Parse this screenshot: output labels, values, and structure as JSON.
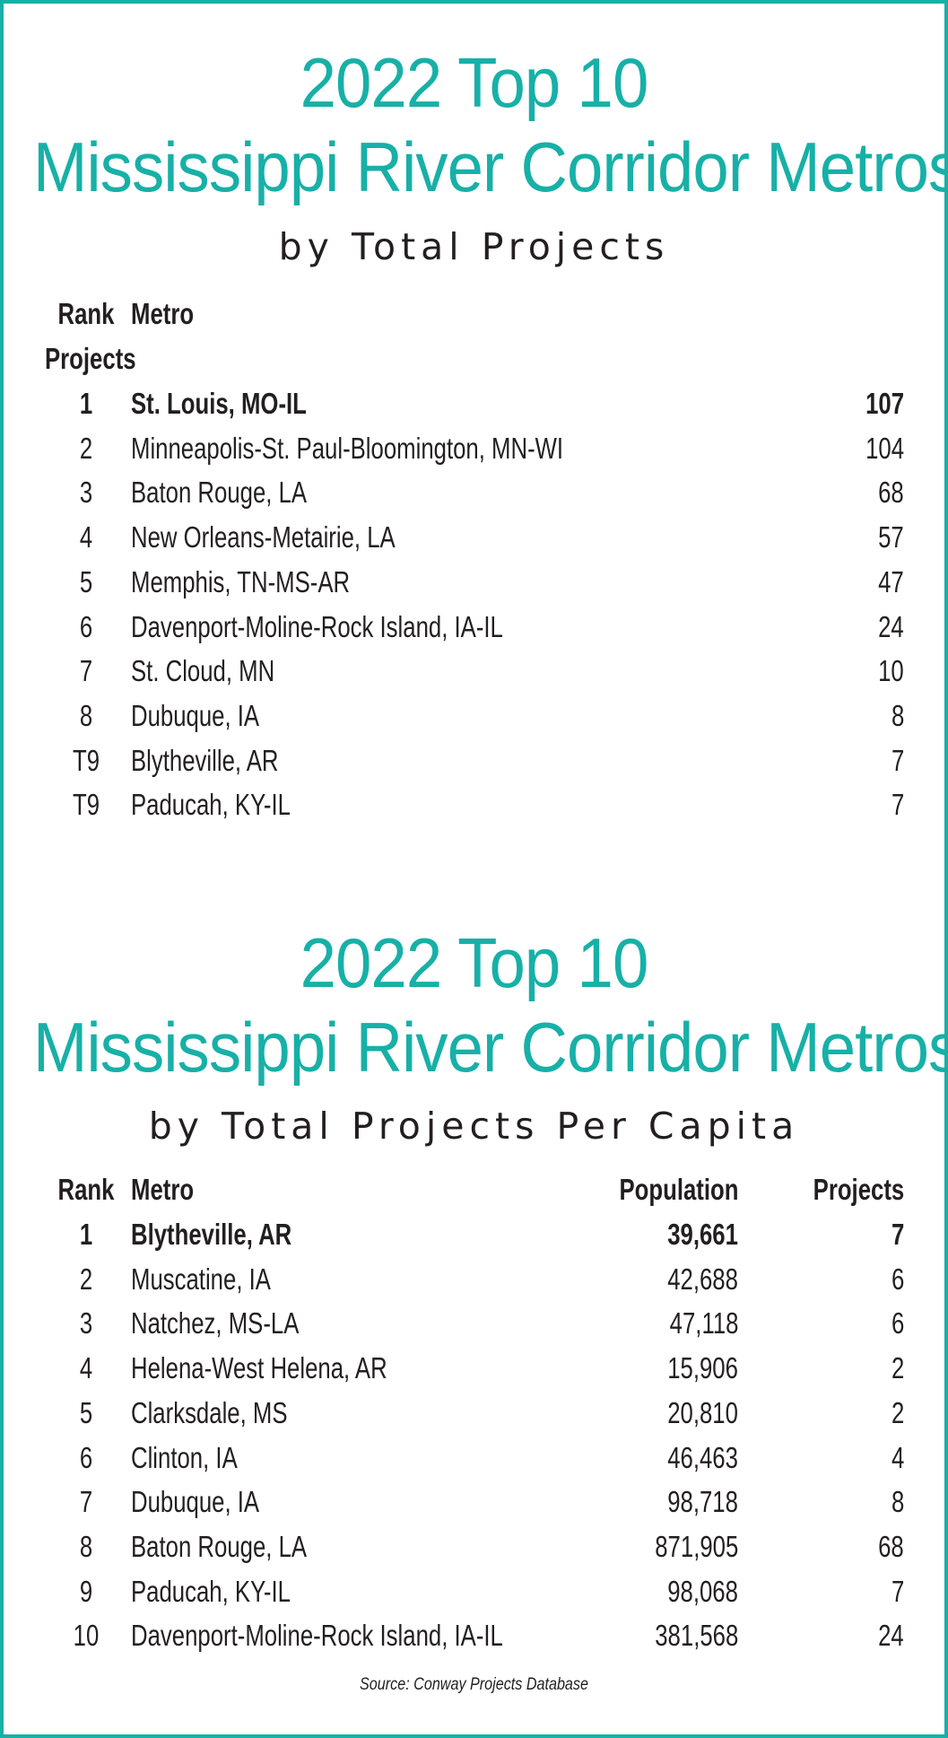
{
  "section1": {
    "title_line1": "2022 Top 10",
    "title_line2": "Mississippi River Corridor Metros",
    "subtitle": "by Total Projects",
    "headers": {
      "rank": "Rank",
      "metro": "Metro",
      "projects": "Projects"
    },
    "rows": [
      {
        "rank": "1",
        "metro": "St. Louis, MO-IL",
        "projects": "107"
      },
      {
        "rank": "2",
        "metro": "Minneapolis-St. Paul-Bloomington, MN-WI",
        "projects": "104"
      },
      {
        "rank": "3",
        "metro": "Baton Rouge, LA",
        "projects": "68"
      },
      {
        "rank": "4",
        "metro": "New Orleans-Metairie, LA",
        "projects": "57"
      },
      {
        "rank": "5",
        "metro": "Memphis, TN-MS-AR",
        "projects": "47"
      },
      {
        "rank": "6",
        "metro": "Davenport-Moline-Rock Island, IA-IL",
        "projects": "24"
      },
      {
        "rank": "7",
        "metro": "St. Cloud, MN",
        "projects": "10"
      },
      {
        "rank": "8",
        "metro": "Dubuque, IA",
        "projects": "8"
      },
      {
        "rank": "T9",
        "metro": "Blytheville, AR",
        "projects": "7"
      },
      {
        "rank": "T9",
        "metro": "Paducah, KY-IL",
        "projects": "7"
      }
    ]
  },
  "section2": {
    "title_line1": "2022 Top 10",
    "title_line2": "Mississippi River Corridor Metros",
    "subtitle": "by Total Projects Per Capita",
    "headers": {
      "rank": "Rank",
      "metro": "Metro",
      "population": "Population",
      "projects": "Projects"
    },
    "rows": [
      {
        "rank": "1",
        "metro": "Blytheville, AR",
        "population": "39,661",
        "projects": "7"
      },
      {
        "rank": "2",
        "metro": "Muscatine, IA",
        "population": "42,688",
        "projects": "6"
      },
      {
        "rank": "3",
        "metro": "Natchez, MS-LA",
        "population": "47,118",
        "projects": "6"
      },
      {
        "rank": "4",
        "metro": "Helena-West Helena, AR",
        "population": "15,906",
        "projects": "2"
      },
      {
        "rank": "5",
        "metro": "Clarksdale, MS",
        "population": "20,810",
        "projects": "2"
      },
      {
        "rank": "6",
        "metro": "Clinton, IA",
        "population": "46,463",
        "projects": "4"
      },
      {
        "rank": "7",
        "metro": "Dubuque, IA",
        "population": "98,718",
        "projects": "8"
      },
      {
        "rank": "8",
        "metro": "Baton Rouge, LA",
        "population": "871,905",
        "projects": "68"
      },
      {
        "rank": "9",
        "metro": "Paducah, KY-IL",
        "population": "98,068",
        "projects": "7"
      },
      {
        "rank": "10",
        "metro": "Davenport-Moline-Rock Island, IA-IL",
        "population": "381,568",
        "projects": "24"
      }
    ]
  },
  "source": "Source: Conway Projects Database",
  "colors": {
    "accent": "#17b0a7",
    "text": "#231f20",
    "background": "#ffffff"
  }
}
